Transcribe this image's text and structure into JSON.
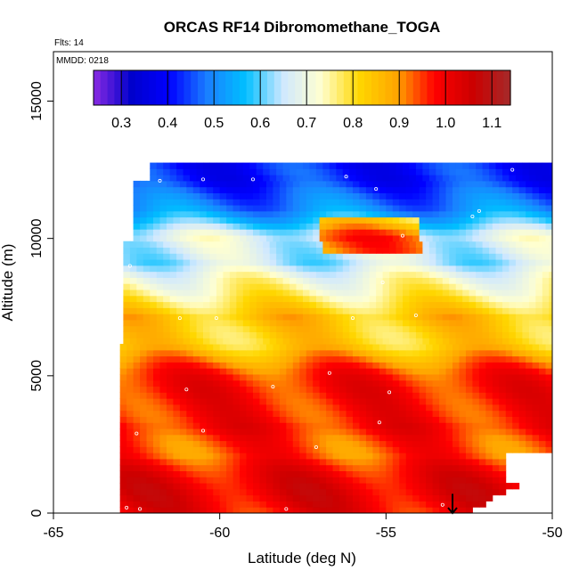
{
  "chart_data": {
    "type": "heatmap",
    "title": "ORCAS RF14 Dibromomethane_TOGA",
    "annotations": {
      "flights": "Flts: 14",
      "date": "MMDD: 0218"
    },
    "xlabel": "Latitude (deg N)",
    "ylabel": "Altitude (m)",
    "xlim": [
      -65,
      -50
    ],
    "ylim": [
      0,
      16800
    ],
    "x_ticks": [
      -65,
      -60,
      -55,
      -50
    ],
    "y_ticks": [
      0,
      5000,
      10000,
      15000
    ],
    "colorbar": {
      "min": 0.24,
      "max": 1.14,
      "ticks": [
        "0.3",
        "0.4",
        "0.5",
        "0.6",
        "0.7",
        "0.8",
        "0.9",
        "1.0",
        "1.1"
      ],
      "tick_values": [
        0.3,
        0.4,
        0.5,
        0.6,
        0.7,
        0.8,
        0.9,
        1.0,
        1.1
      ],
      "colors": [
        "#8a2be2",
        "#0000cc",
        "#0000ff",
        "#1a7fff",
        "#00bfff",
        "#cfe8ff",
        "#ffffd0",
        "#ffd700",
        "#ffa500",
        "#ff0000",
        "#cc0000",
        "#a52a2a"
      ]
    },
    "field_profile": [
      {
        "alt": 12000,
        "value": 0.38
      },
      {
        "alt": 11000,
        "value": 0.52
      },
      {
        "alt": 10000,
        "value": 0.72
      },
      {
        "alt": 9000,
        "value": 0.62
      },
      {
        "alt": 8000,
        "value": 0.72
      },
      {
        "alt": 7000,
        "value": 0.88
      },
      {
        "alt": 6000,
        "value": 0.85
      },
      {
        "alt": 5000,
        "value": 0.92
      },
      {
        "alt": 4000,
        "value": 0.96
      },
      {
        "alt": 3000,
        "value": 1.02
      },
      {
        "alt": 2000,
        "value": 0.95
      },
      {
        "alt": 1000,
        "value": 0.97
      },
      {
        "alt": 0,
        "value": 1.0
      }
    ],
    "sample_points": [
      {
        "lat": -62.8,
        "alt": 200
      },
      {
        "lat": -62.4,
        "alt": 150
      },
      {
        "lat": -58,
        "alt": 150
      },
      {
        "lat": -53.3,
        "alt": 300
      },
      {
        "lat": -62.5,
        "alt": 2900
      },
      {
        "lat": -60.5,
        "alt": 3000
      },
      {
        "lat": -57.1,
        "alt": 2400
      },
      {
        "lat": -55.2,
        "alt": 3300
      },
      {
        "lat": -61,
        "alt": 4500
      },
      {
        "lat": -58.4,
        "alt": 4600
      },
      {
        "lat": -56.7,
        "alt": 5100
      },
      {
        "lat": -54.9,
        "alt": 4400
      },
      {
        "lat": -61.2,
        "alt": 7100
      },
      {
        "lat": -60.1,
        "alt": 7100
      },
      {
        "lat": -56,
        "alt": 7100
      },
      {
        "lat": -54.1,
        "alt": 7200
      },
      {
        "lat": -62.7,
        "alt": 9000
      },
      {
        "lat": -55.1,
        "alt": 8400
      },
      {
        "lat": -54.5,
        "alt": 10100
      },
      {
        "lat": -52.4,
        "alt": 10800
      },
      {
        "lat": -61.8,
        "alt": 12100
      },
      {
        "lat": -60.5,
        "alt": 12150
      },
      {
        "lat": -59,
        "alt": 12150
      },
      {
        "lat": -56.2,
        "alt": 12250
      },
      {
        "lat": -55.3,
        "alt": 11800
      },
      {
        "lat": -51.2,
        "alt": 12500
      },
      {
        "lat": -52.2,
        "alt": 11000
      }
    ],
    "arrow": {
      "lat": -53,
      "alt_from": 700,
      "alt_to": 0
    }
  }
}
